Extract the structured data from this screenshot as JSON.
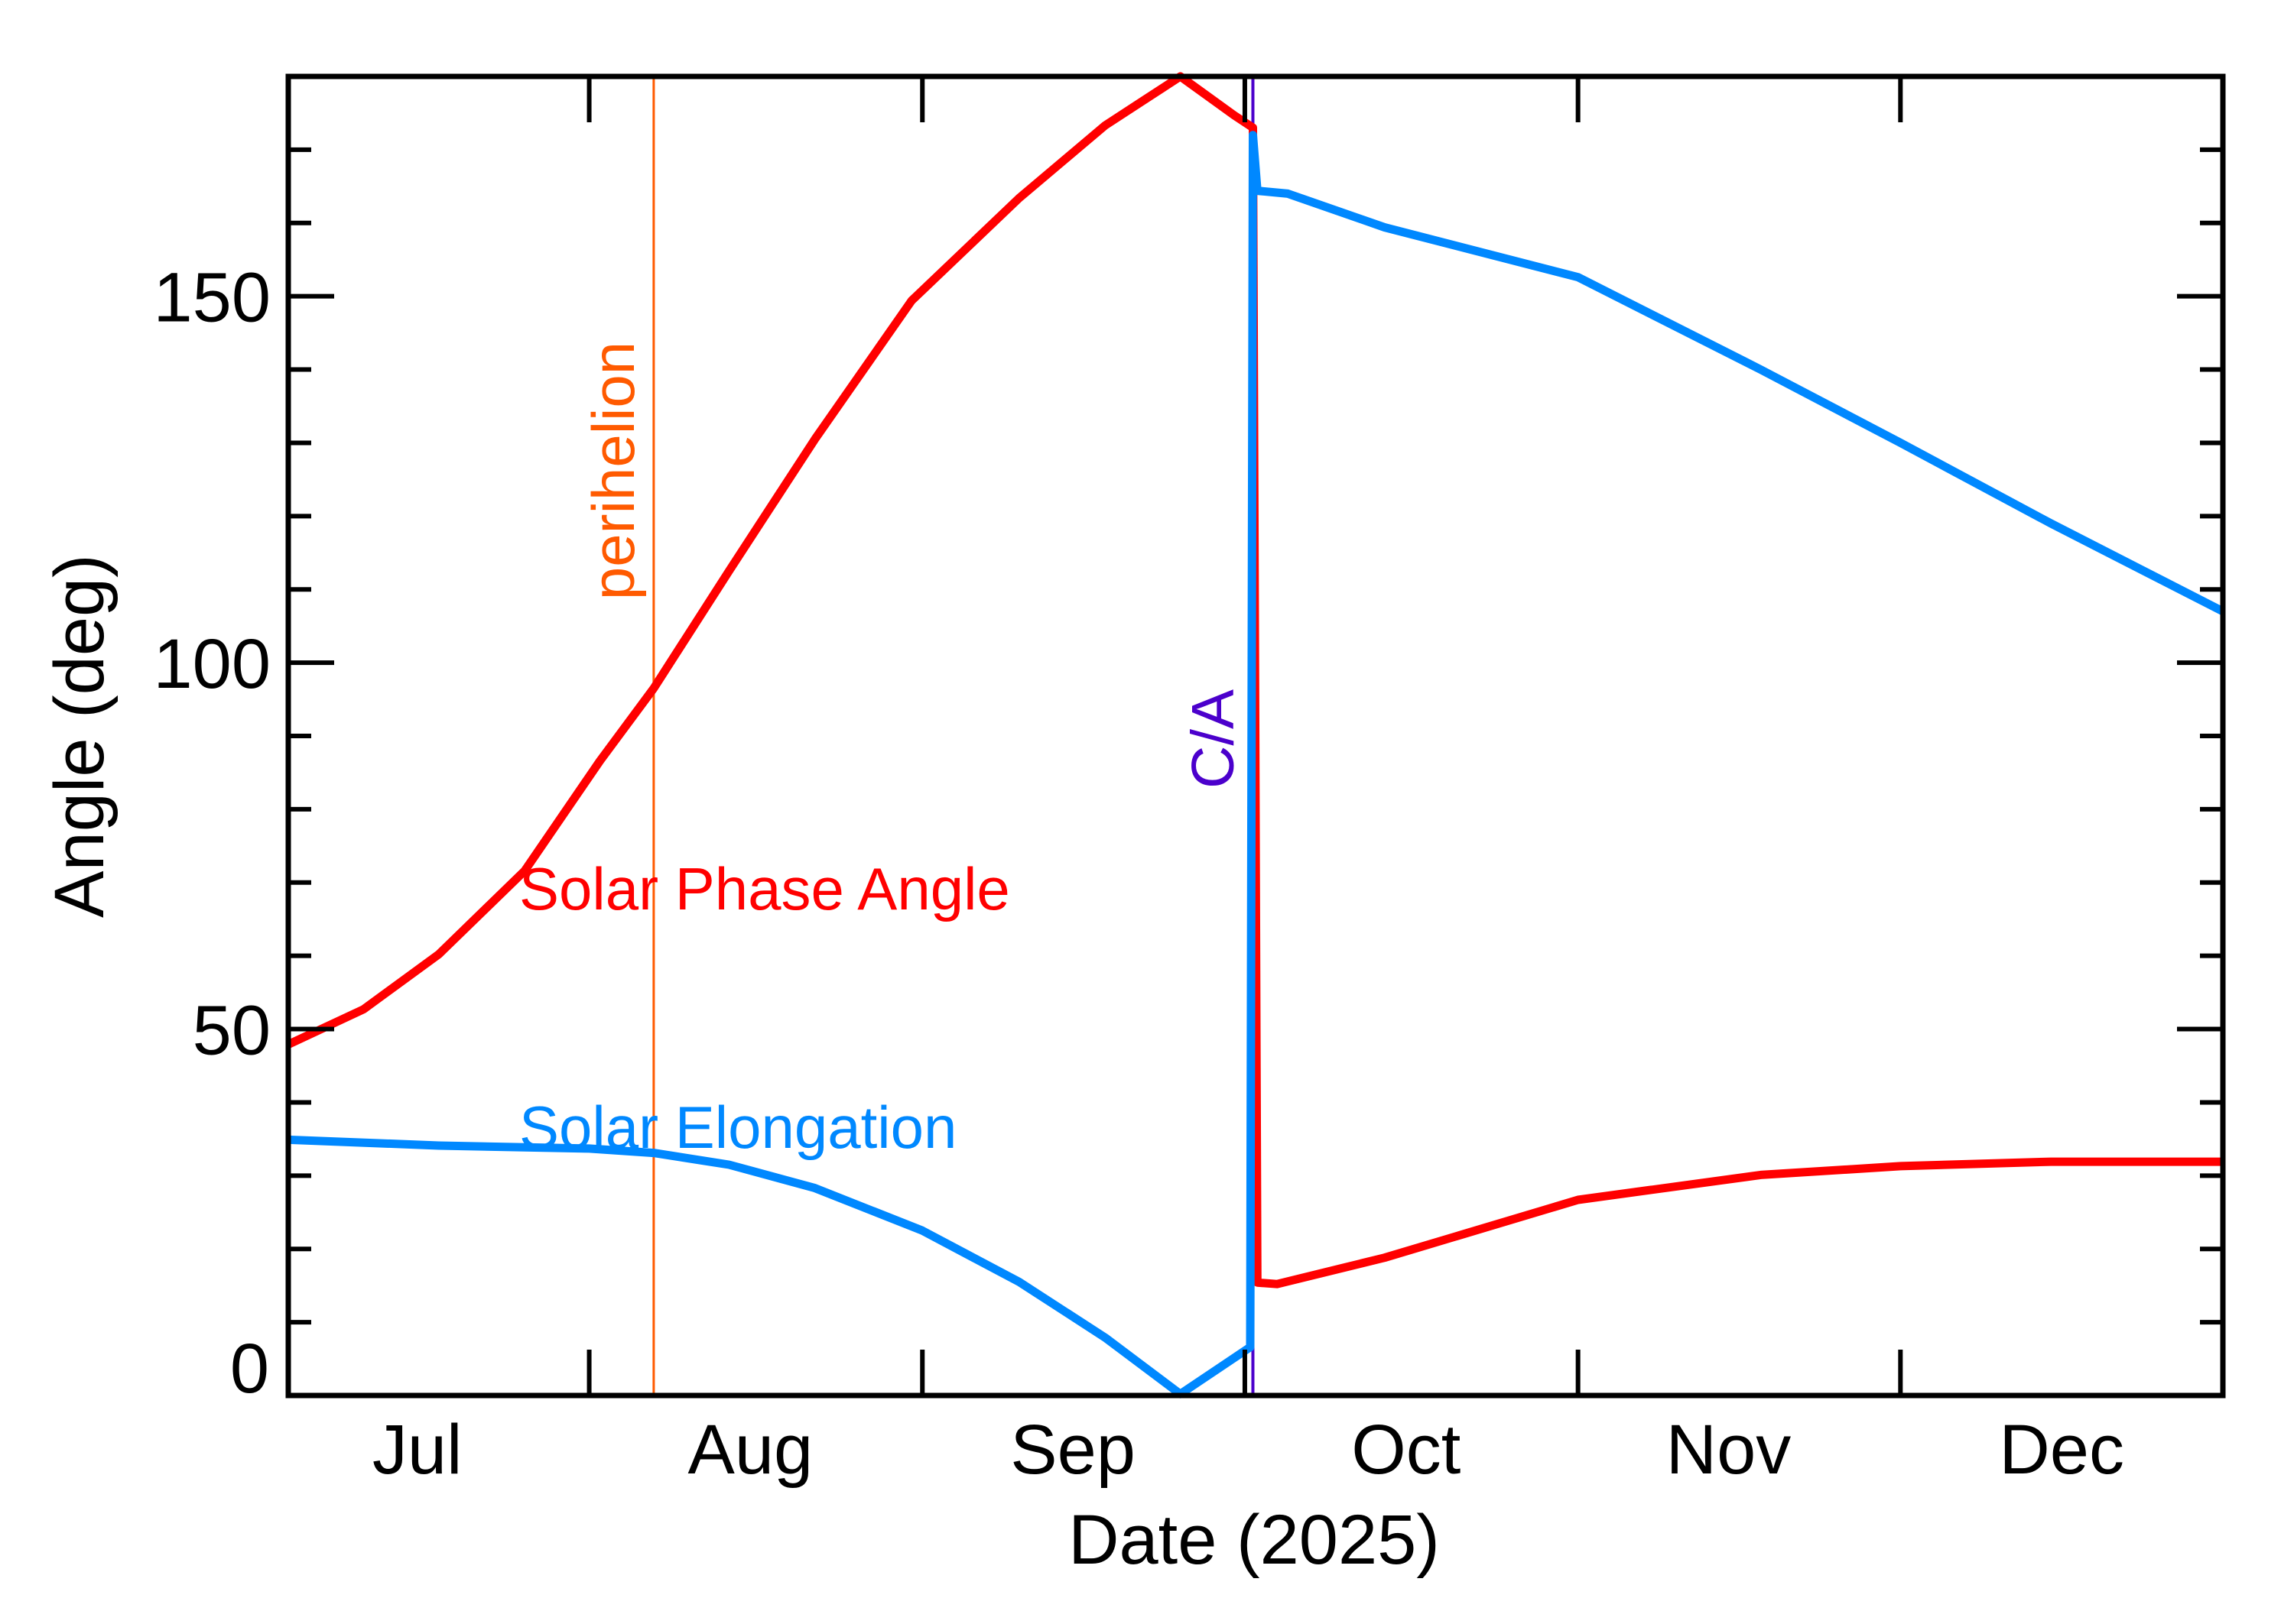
{
  "chart_data": {
    "type": "line",
    "title": "",
    "xlabel": "Date (2025)",
    "ylabel": "Angle (deg)",
    "xlim": [
      "2025-07-04",
      "2025-12-31"
    ],
    "ylim": [
      0,
      180
    ],
    "grid": false,
    "x_ticks": [
      {
        "label": "Jul",
        "month_start": "2025-07-01",
        "label_at": "2025-07-16"
      },
      {
        "label": "Aug",
        "month_start": "2025-08-01",
        "label_at": "2025-08-16"
      },
      {
        "label": "Sep",
        "month_start": "2025-09-01",
        "label_at": "2025-09-15"
      },
      {
        "label": "Oct",
        "month_start": "2025-10-01",
        "label_at": "2025-10-16"
      },
      {
        "label": "Nov",
        "month_start": "2025-11-01",
        "label_at": "2025-11-15"
      },
      {
        "label": "Dec",
        "month_start": "2025-12-01",
        "label_at": "2025-12-16"
      }
    ],
    "y_ticks": [
      {
        "value": 0,
        "label": "0"
      },
      {
        "value": 50,
        "label": "50"
      },
      {
        "value": 100,
        "label": "100"
      },
      {
        "value": 150,
        "label": "150"
      }
    ],
    "y_minor_step": 10,
    "series": [
      {
        "name": "Solar Phase Angle",
        "color": "#ff0000",
        "points": [
          [
            "2025-07-04",
            47.9
          ],
          [
            "2025-07-11",
            52.7
          ],
          [
            "2025-07-18",
            60.2
          ],
          [
            "2025-07-26",
            71.6
          ],
          [
            "2025-08-02",
            86.6
          ],
          [
            "2025-08-07",
            96.5
          ],
          [
            "2025-08-14",
            112.5
          ],
          [
            "2025-08-22",
            130.5
          ],
          [
            "2025-08-31",
            149.4
          ],
          [
            "2025-09-10",
            163.4
          ],
          [
            "2025-09-18",
            173.3
          ],
          [
            "2025-09-25",
            180.0
          ],
          [
            "2025-09-30",
            174.7
          ],
          [
            "2025-10-01T18:00",
            173.0
          ],
          [
            "2025-10-02T04:00",
            15.4
          ],
          [
            "2025-10-04",
            15.2
          ],
          [
            "2025-10-14",
            18.8
          ],
          [
            "2025-11-01",
            26.7
          ],
          [
            "2025-11-18",
            30.1
          ],
          [
            "2025-12-01",
            31.3
          ],
          [
            "2025-12-15",
            31.9
          ],
          [
            "2025-12-31",
            31.9
          ]
        ]
      },
      {
        "name": "Solar Elongation",
        "color": "#0088ff",
        "points": [
          [
            "2025-07-04",
            34.9
          ],
          [
            "2025-07-18",
            34.1
          ],
          [
            "2025-08-01",
            33.7
          ],
          [
            "2025-08-07",
            33.1
          ],
          [
            "2025-08-14",
            31.5
          ],
          [
            "2025-08-22",
            28.3
          ],
          [
            "2025-09-01",
            22.5
          ],
          [
            "2025-09-10",
            15.5
          ],
          [
            "2025-09-18",
            7.9
          ],
          [
            "2025-09-25",
            0.2
          ],
          [
            "2025-10-01T12:00",
            6.6
          ],
          [
            "2025-10-01T18:00",
            172.0
          ],
          [
            "2025-10-02T04:00",
            164.4
          ],
          [
            "2025-10-05",
            164.0
          ],
          [
            "2025-10-14",
            159.4
          ],
          [
            "2025-11-01",
            152.6
          ],
          [
            "2025-11-18",
            140.0
          ],
          [
            "2025-12-01",
            130.0
          ],
          [
            "2025-12-15",
            119.0
          ],
          [
            "2025-12-31",
            107.0
          ]
        ]
      }
    ],
    "events": [
      {
        "label": "perihelion",
        "date": "2025-08-07",
        "color": "#ff5a00"
      },
      {
        "label": "C/A",
        "date": "2025-10-01T18:00",
        "color": "#4b00cc"
      }
    ]
  }
}
